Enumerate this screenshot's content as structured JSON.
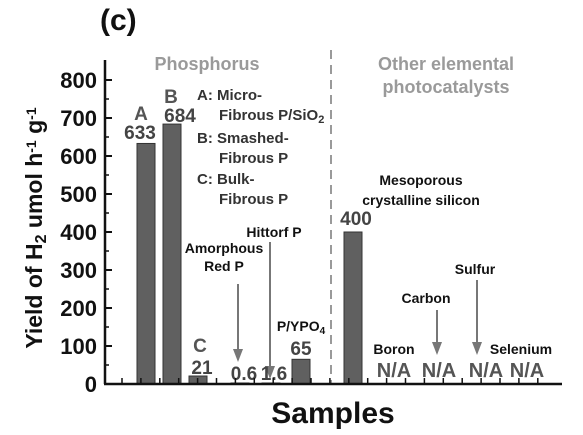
{
  "chart_data": {
    "type": "bar",
    "panel_label": "(c)",
    "xlabel": "Samples",
    "ylabel_parts": [
      "Yield of H",
      "2",
      " umol h",
      "-1",
      " g",
      "-1"
    ],
    "yticks": [
      0,
      100,
      200,
      300,
      400,
      500,
      600,
      700,
      800
    ],
    "ylim": [
      0,
      880
    ],
    "sections": [
      "Phosphorus",
      "Other elemental",
      "photocatalysts"
    ],
    "legend": [
      "A: Micro-",
      "Fibrous P/SiO2",
      "B: Smashed-",
      "Fibrous P",
      "C: Bulk-",
      "Fibrous P"
    ],
    "categories": [
      "A",
      "B",
      "C",
      "Amorphous Red P",
      "Hittorf P",
      "P/YPO4",
      "Mesoporous crystalline silicon",
      "Boron",
      "Carbon",
      "Sulfur",
      "Selenium"
    ],
    "values": [
      633,
      684,
      21,
      0.6,
      1.6,
      65,
      400,
      null,
      null,
      null,
      null
    ],
    "bar_letters": [
      "A",
      "B",
      "C",
      "",
      "",
      "",
      "",
      "",
      "",
      "",
      ""
    ],
    "value_labels": [
      "633",
      "684",
      "21",
      "0.6",
      "1.6",
      "65",
      "400",
      "N/A",
      "N/A",
      "N/A",
      "N/A"
    ],
    "annotations": {
      "amorphous": [
        "Amorphous",
        "Red P"
      ],
      "hittorf": "Hittorf P",
      "ypo4": [
        "P/YPO",
        "4"
      ],
      "silicon": [
        "Mesoporous",
        "crystalline silicon"
      ],
      "boron": "Boron",
      "carbon": "Carbon",
      "sulfur": "Sulfur",
      "selenium": "Selenium"
    },
    "grid": false,
    "bar_color": "#606060",
    "divider_color": "#9a9a9a"
  }
}
